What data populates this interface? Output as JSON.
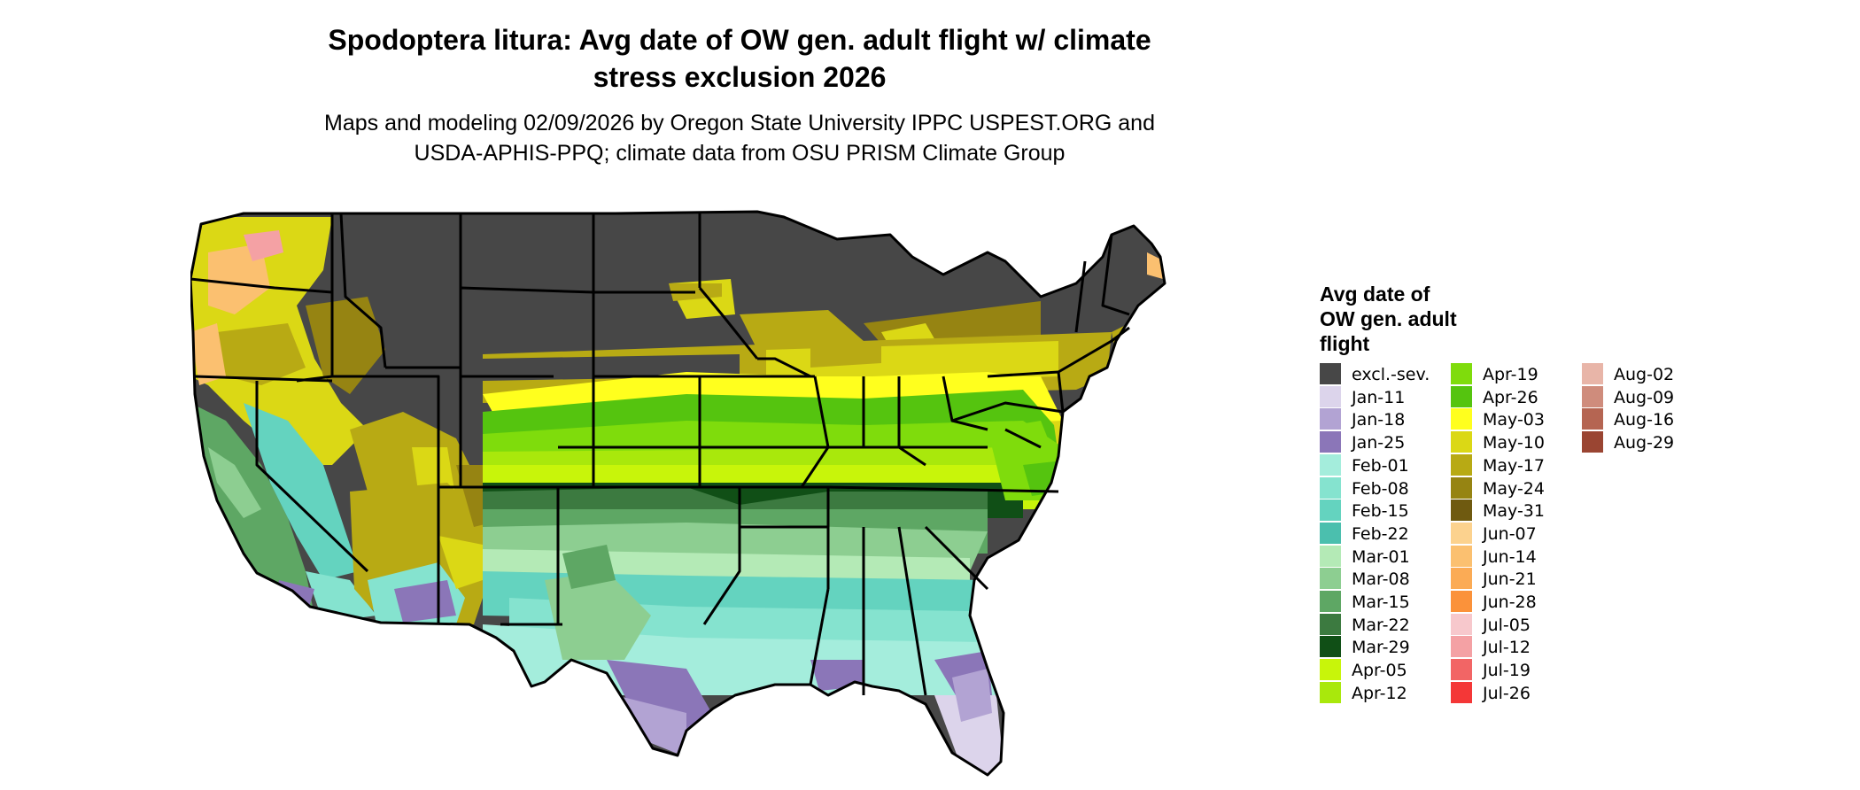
{
  "title": "Spodoptera litura: Avg date of OW gen. adult flight w/ climate stress exclusion 2026",
  "title_lines": [
    "Spodoptera litura: Avg date of OW gen. adult flight w/ climate",
    "stress exclusion 2026"
  ],
  "subtitle_lines": [
    "Maps and modeling 02/09/2026 by Oregon State University IPPC USPEST.ORG and",
    "USDA-APHIS-PPQ; climate data from OSU PRISM Climate Group"
  ],
  "legend": {
    "title_lines": [
      "Avg date of",
      "OW gen. adult",
      "flight"
    ],
    "items": [
      {
        "label": "excl.-sev.",
        "color": "#474747"
      },
      {
        "label": "Jan-11",
        "color": "#dcd4eb"
      },
      {
        "label": "Jan-18",
        "color": "#b2a3d3"
      },
      {
        "label": "Jan-25",
        "color": "#8b76b8"
      },
      {
        "label": "Feb-01",
        "color": "#a4eddc"
      },
      {
        "label": "Feb-08",
        "color": "#85e3cf"
      },
      {
        "label": "Feb-15",
        "color": "#64d3bf"
      },
      {
        "label": "Feb-22",
        "color": "#4bbfae"
      },
      {
        "label": "Mar-01",
        "color": "#b4eab6"
      },
      {
        "label": "Mar-08",
        "color": "#8dce91"
      },
      {
        "label": "Mar-15",
        "color": "#5ea764"
      },
      {
        "label": "Mar-22",
        "color": "#3c7a40"
      },
      {
        "label": "Mar-29",
        "color": "#104f16"
      },
      {
        "label": "Apr-05",
        "color": "#c8f50a"
      },
      {
        "label": "Apr-12",
        "color": "#a9e80c"
      },
      {
        "label": "Apr-19",
        "color": "#7fdc0c"
      },
      {
        "label": "Apr-26",
        "color": "#55c40f"
      },
      {
        "label": "May-03",
        "color": "#ffff1e"
      },
      {
        "label": "May-10",
        "color": "#dbd815"
      },
      {
        "label": "May-17",
        "color": "#b8aa14"
      },
      {
        "label": "May-24",
        "color": "#968412"
      },
      {
        "label": "May-31",
        "color": "#6f5a10"
      },
      {
        "label": "Jun-07",
        "color": "#fcd28e"
      },
      {
        "label": "Jun-14",
        "color": "#fbc070"
      },
      {
        "label": "Jun-21",
        "color": "#fbab55"
      },
      {
        "label": "Jun-28",
        "color": "#fb923a"
      },
      {
        "label": "Jul-05",
        "color": "#f7c8cc"
      },
      {
        "label": "Jul-12",
        "color": "#f4a1a4"
      },
      {
        "label": "Jul-19",
        "color": "#f26565"
      },
      {
        "label": "Jul-26",
        "color": "#f43737"
      },
      {
        "label": "Aug-02",
        "color": "#e8b5a8"
      },
      {
        "label": "Aug-09",
        "color": "#cf8c7c"
      },
      {
        "label": "Aug-16",
        "color": "#b56552"
      },
      {
        "label": "Aug-29",
        "color": "#9a4532"
      }
    ]
  }
}
